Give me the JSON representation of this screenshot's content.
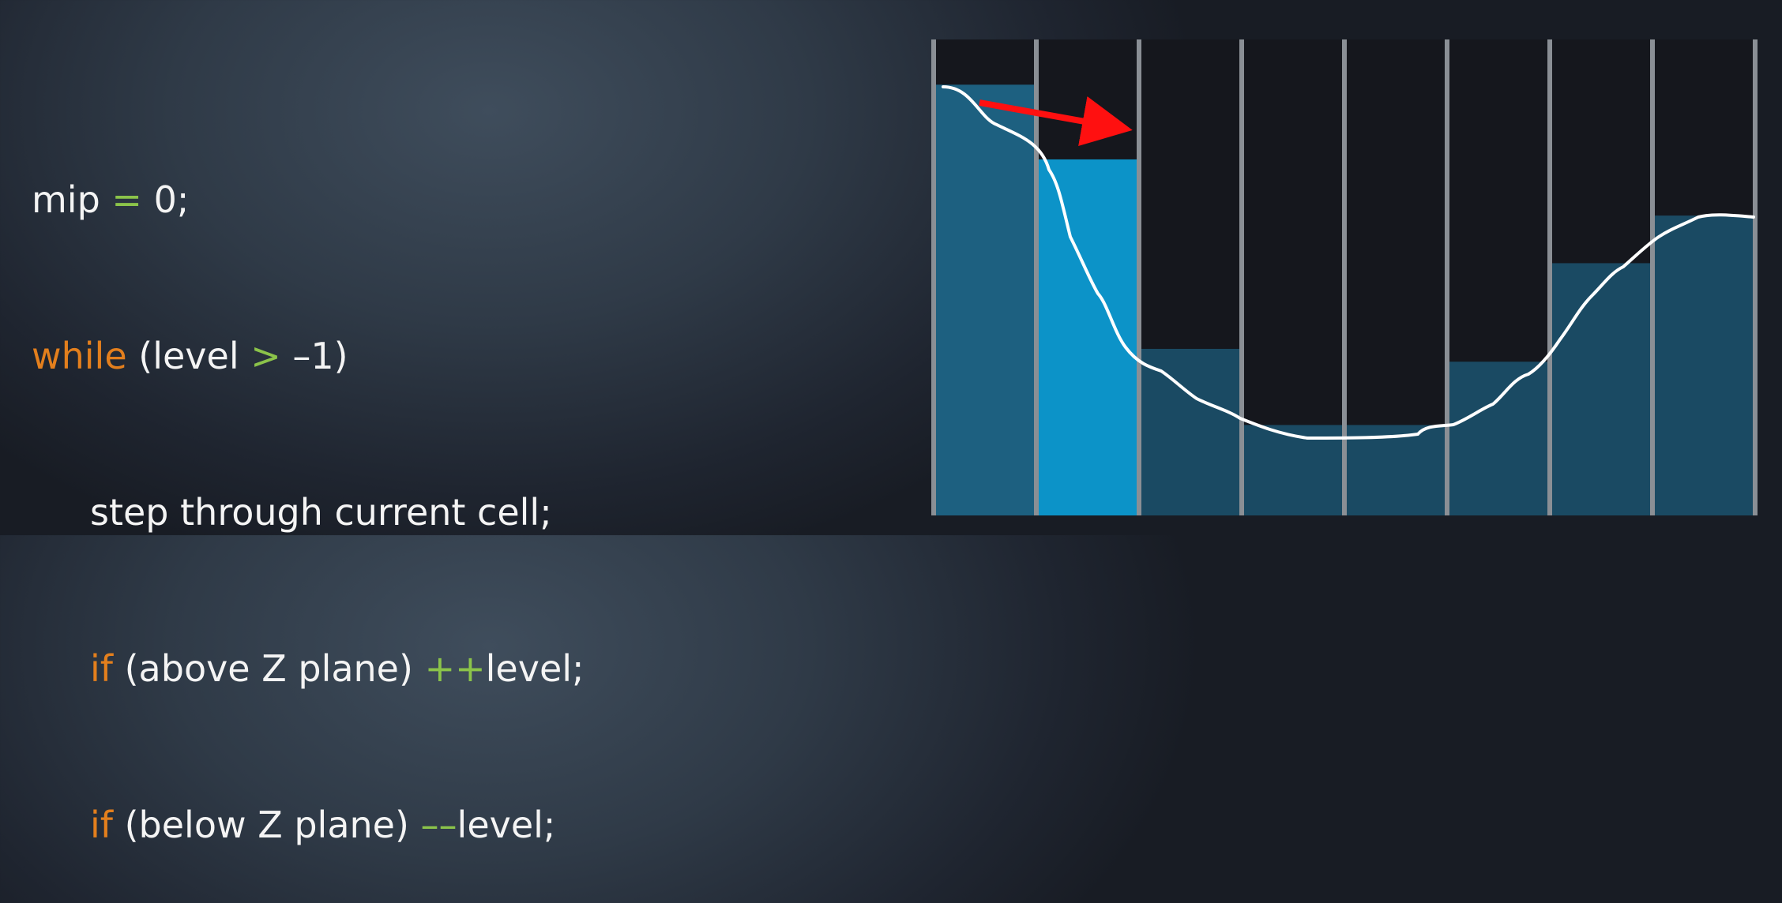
{
  "code": {
    "line1": {
      "a": "mip ",
      "op": "=",
      "b": " 0;"
    },
    "line2": {
      "kw": "while",
      "b": " (level ",
      "op": ">",
      "c": " –1)"
    },
    "line3": {
      "text": "step through current cell;"
    },
    "line4": {
      "kw": "if",
      "b": " (above Z plane) ",
      "op": "++",
      "c": "level;"
    },
    "line5": {
      "kw": "if",
      "b": " (below Z plane) ",
      "op": "––",
      "c": "level;"
    }
  },
  "diagram": {
    "colors": {
      "cell_fill": "#1e6d92",
      "active_cell_fill": "#0c93c8",
      "grid_line": "#8a8f95",
      "curve": "#ffffff",
      "arrow": "#ff1010",
      "background_dark": "#15171d"
    },
    "cell_heights": [
      0.905,
      0.748,
      0.35,
      0.19,
      0.19,
      0.323,
      0.53,
      0.63
    ],
    "active_cell_index": 1
  }
}
